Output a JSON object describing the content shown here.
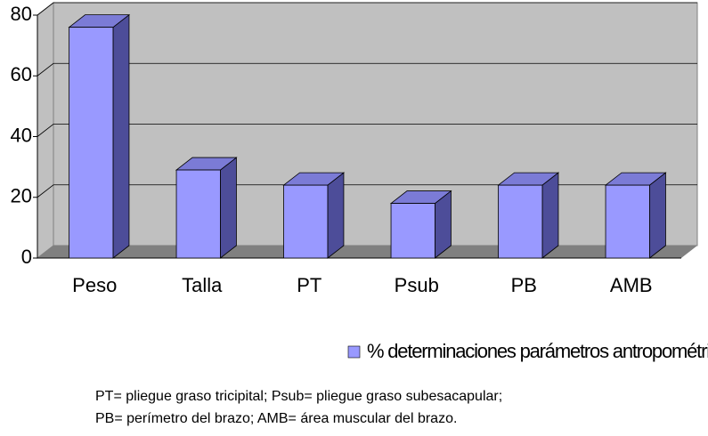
{
  "chart_data": {
    "type": "bar",
    "categories": [
      "Peso",
      "Talla",
      "PT",
      "Psub",
      "PB",
      "AMB"
    ],
    "series": [
      {
        "name": "% determinaciones parámetros antropométricos",
        "color": "#9999ff",
        "values": [
          76,
          29,
          24,
          18,
          24,
          24
        ]
      }
    ],
    "ylim": [
      0,
      80
    ],
    "yticks": [
      0,
      20,
      40,
      60,
      80
    ],
    "grid": true,
    "footnote": [
      "PT= pliegue graso tricipital; Psub= pliegue graso subesacapular;",
      "PB= perímetro del brazo; AMB= área muscular del brazo."
    ]
  }
}
